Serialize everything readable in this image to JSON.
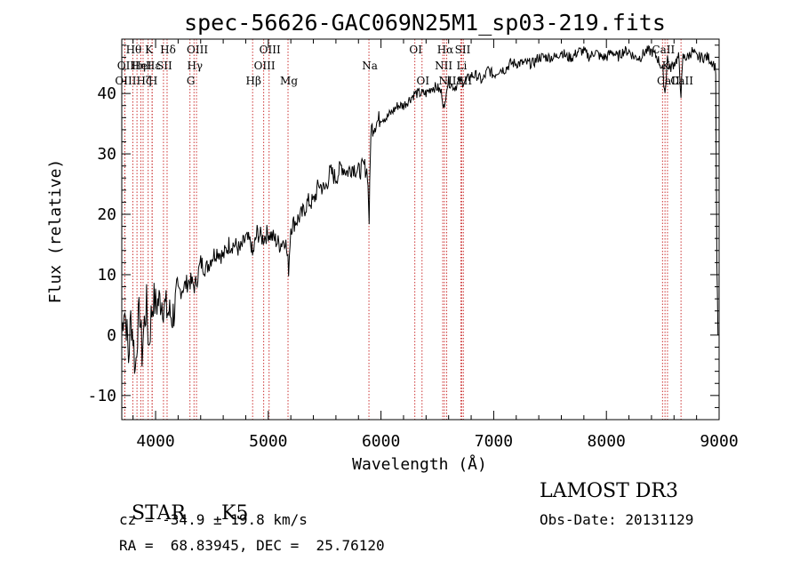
{
  "chart_data": {
    "type": "line",
    "title": "spec-56626-GAC069N25M1_sp03-219.fits",
    "xlabel": "Wavelength (Å)",
    "ylabel": "Flux (relative)",
    "xlim": [
      3700,
      9000
    ],
    "ylim": [
      -14,
      49
    ],
    "xticks": [
      4000,
      5000,
      6000,
      7000,
      8000,
      9000
    ],
    "yticks": [
      -10,
      0,
      10,
      20,
      30,
      40
    ],
    "series": [
      {
        "name": "flux",
        "x": [
          3700,
          3720,
          3740,
          3760,
          3780,
          3800,
          3820,
          3840,
          3860,
          3880,
          3900,
          3920,
          3940,
          3960,
          3980,
          4000,
          4050,
          4100,
          4150,
          4200,
          4250,
          4300,
          4350,
          4400,
          4450,
          4500,
          4550,
          4600,
          4650,
          4700,
          4750,
          4800,
          4850,
          4860,
          4900,
          4950,
          5000,
          5050,
          5100,
          5150,
          5180,
          5200,
          5250,
          5300,
          5350,
          5400,
          5450,
          5500,
          5550,
          5600,
          5650,
          5700,
          5750,
          5800,
          5850,
          5880,
          5895,
          5910,
          5950,
          6000,
          6050,
          6100,
          6150,
          6200,
          6250,
          6300,
          6350,
          6400,
          6450,
          6500,
          6540,
          6563,
          6580,
          6600,
          6650,
          6700,
          6750,
          6800,
          6850,
          6900,
          6950,
          7000,
          7050,
          7100,
          7150,
          7200,
          7250,
          7300,
          7350,
          7400,
          7450,
          7500,
          7550,
          7600,
          7650,
          7700,
          7750,
          7800,
          7850,
          7900,
          7950,
          8000,
          8050,
          8100,
          8150,
          8200,
          8250,
          8300,
          8350,
          8400,
          8450,
          8498,
          8520,
          8542,
          8560,
          8600,
          8640,
          8662,
          8680,
          8720,
          8760,
          8800,
          8850,
          8900,
          8950,
          8970,
          8980,
          8990
        ],
        "y": [
          0,
          5,
          2,
          -4,
          3,
          0,
          -6,
          1,
          4,
          -3,
          2,
          5,
          -2,
          3,
          6,
          5,
          6,
          4,
          3,
          7,
          8,
          9,
          8,
          12,
          11,
          13,
          14,
          13,
          15,
          15,
          14,
          16,
          15,
          13,
          17,
          16,
          17,
          16,
          15,
          16,
          11,
          18,
          19,
          20,
          22,
          22,
          25,
          24,
          27,
          26,
          28,
          27,
          28,
          27,
          28,
          27,
          19,
          34,
          35,
          36,
          36,
          37,
          38,
          38,
          39,
          40,
          40,
          40,
          41,
          41,
          40,
          37,
          41,
          42,
          41,
          42,
          42,
          43,
          43,
          42,
          44,
          43,
          44,
          44,
          45,
          45,
          45,
          45,
          45,
          46,
          46,
          46,
          46,
          47,
          46,
          46,
          47,
          47,
          46,
          47,
          46,
          46,
          47,
          46,
          47,
          47,
          46,
          46,
          47,
          47,
          46,
          44,
          40,
          46,
          44,
          45,
          46,
          40,
          46,
          46,
          47,
          46,
          46,
          46,
          45,
          44,
          12,
          0
        ]
      }
    ],
    "line_markers": [
      {
        "name": "OII",
        "x": 3727,
        "row": 1
      },
      {
        "name": "OIII",
        "x": 3727,
        "row": 2
      },
      {
        "name": "Hθ",
        "x": 3798,
        "row": 0
      },
      {
        "name": "Hη",
        "x": 3835,
        "row": 1
      },
      {
        "name": "Hζ",
        "x": 3889,
        "row": 2
      },
      {
        "name": "K",
        "x": 3934,
        "row": 0
      },
      {
        "name": "HeI",
        "x": 3869,
        "row": 1
      },
      {
        "name": "Hε",
        "x": 3970,
        "row": 1
      },
      {
        "name": "H",
        "x": 3969,
        "row": 2
      },
      {
        "name": "Hδ",
        "x": 4102,
        "row": 0
      },
      {
        "name": "SII",
        "x": 4070,
        "row": 1
      },
      {
        "name": "OIII",
        "x": 4363,
        "row": 0
      },
      {
        "name": "Hγ",
        "x": 4341,
        "row": 1
      },
      {
        "name": "G",
        "x": 4305,
        "row": 2
      },
      {
        "name": "Hβ",
        "x": 4861,
        "row": 2
      },
      {
        "name": "OIII",
        "x": 5007,
        "row": 0
      },
      {
        "name": "OIII",
        "x": 4959,
        "row": 1
      },
      {
        "name": "Mg",
        "x": 5175,
        "row": 2
      },
      {
        "name": "Na",
        "x": 5893,
        "row": 1
      },
      {
        "name": "OI",
        "x": 6300,
        "row": 0
      },
      {
        "name": "OI",
        "x": 6364,
        "row": 2
      },
      {
        "name": "Hα",
        "x": 6563,
        "row": 0
      },
      {
        "name": "NII",
        "x": 6548,
        "row": 1
      },
      {
        "name": "NII",
        "x": 6583,
        "row": 2
      },
      {
        "name": "SII",
        "x": 6717,
        "row": 0
      },
      {
        "name": "Li",
        "x": 6708,
        "row": 1
      },
      {
        "name": "SII",
        "x": 6731,
        "row": 2
      },
      {
        "name": "CaII",
        "x": 8498,
        "row": 0
      },
      {
        "name": "K",
        "x": 8520,
        "row": 1
      },
      {
        "name": "CaII",
        "x": 8542,
        "row": 2
      },
      {
        "name": "CaII",
        "x": 8662,
        "row": 3
      }
    ]
  },
  "info": {
    "class": "STAR",
    "subclass": "K5",
    "survey": "LAMOST DR3",
    "cz": "cz = -34.9 ± 19.8 km/s",
    "obs_date": "Obs-Date: 20131129",
    "radec": "RA =  68.83945, DEC =  25.76120"
  }
}
